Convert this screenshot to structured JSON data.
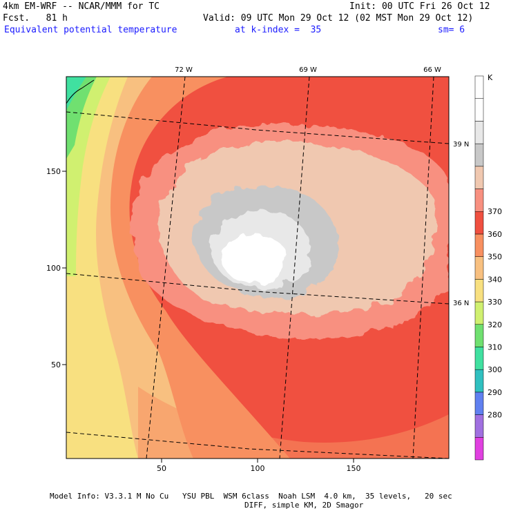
{
  "header": {
    "model_line": "4km EM-WRF -- NCAR/MMM for TC",
    "init_line": "Init: 00 UTC Fri 26 Oct 12",
    "fcst_line": "Fcst.   81 h",
    "valid_line": "Valid: 09 UTC Mon 29 Oct 12 (02 MST Mon 29 Oct 12)",
    "field_name": "Equivalent potential temperature",
    "kindex": "at k-index =  35",
    "smooth": "sm= 6"
  },
  "map": {
    "x_ticks": [
      "50",
      "100",
      "150"
    ],
    "y_ticks": [
      "50",
      "100",
      "150"
    ],
    "lon_labels": [
      "72 W",
      "69 W",
      "66 W"
    ],
    "lat_labels": [
      "39 N",
      "36 N"
    ]
  },
  "colorbar": {
    "unit": "K",
    "labels": [
      "280",
      "290",
      "300",
      "310",
      "320",
      "330",
      "340",
      "350",
      "360",
      "370"
    ],
    "colors": [
      "#e040e0",
      "#a070e0",
      "#6080f0",
      "#30c0c0",
      "#40e0a0",
      "#70e070",
      "#d0f070",
      "#f8e080",
      "#f8c080",
      "#f89060",
      "#f05040",
      "#f89080",
      "#f0c8b0",
      "#c8c8c8",
      "#e8e8e8",
      "#ffffff",
      "#ffffff"
    ]
  },
  "footer": {
    "line1": "Model Info: V3.3.1 M No Cu   YSU PBL  WSM 6class  Noah LSM  4.0 km,  35 levels,   20 sec",
    "line2": "DIFF, simple KM, 2D Smagor"
  }
}
